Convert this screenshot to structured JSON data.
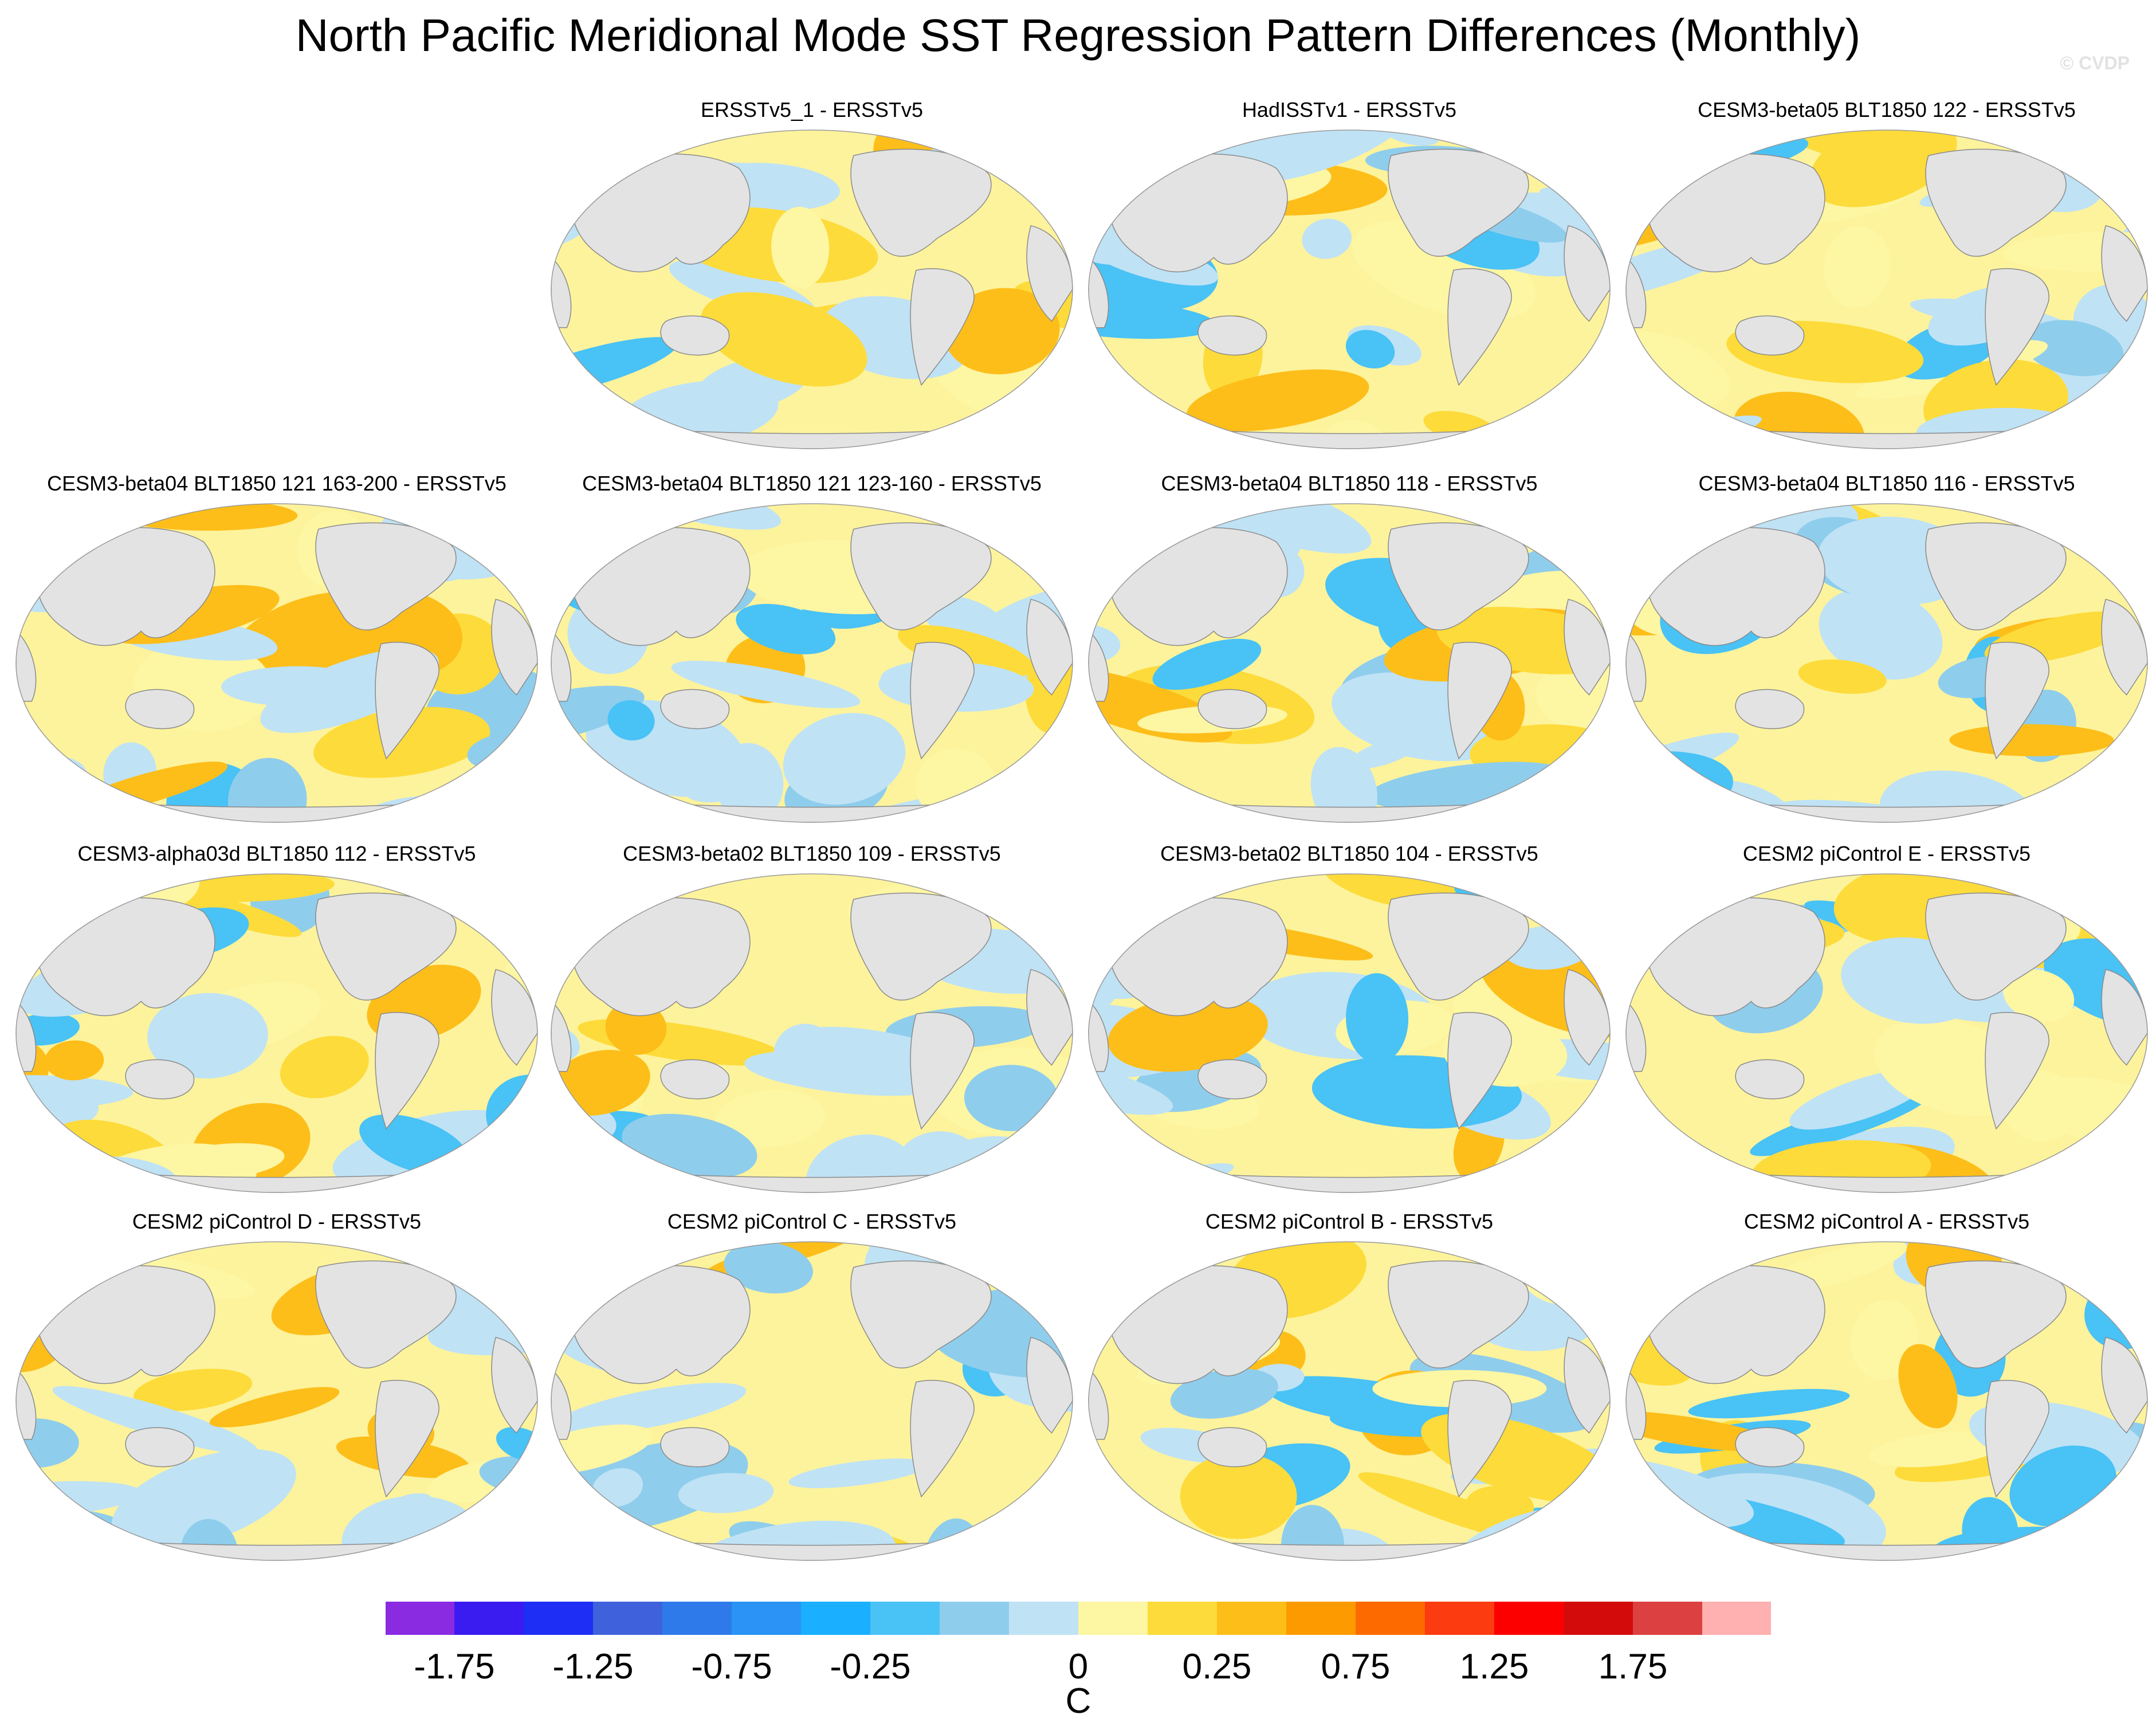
{
  "title": "North Pacific Meridional Mode SST Regression Pattern Differences (Monthly)",
  "watermark": "© CVDP",
  "colors": {
    "land": "#e3e3e3",
    "coast": "#8a8a8a",
    "ocean_base": "#fdf39c"
  },
  "panels": [
    {
      "title": "ERSSTv5_1 - ERSSTv5",
      "col": 1,
      "row": 0
    },
    {
      "title": "HadISSTv1 - ERSSTv5",
      "col": 2,
      "row": 0
    },
    {
      "title": "CESM3-beta05 BLT1850 122 - ERSSTv5",
      "col": 3,
      "row": 0
    },
    {
      "title": "CESM3-beta04 BLT1850 121 163-200 - ERSSTv5",
      "col": 0,
      "row": 1
    },
    {
      "title": "CESM3-beta04 BLT1850 121 123-160 - ERSSTv5",
      "col": 1,
      "row": 1
    },
    {
      "title": "CESM3-beta04 BLT1850 118 - ERSSTv5",
      "col": 2,
      "row": 1
    },
    {
      "title": "CESM3-beta04 BLT1850 116 - ERSSTv5",
      "col": 3,
      "row": 1
    },
    {
      "title": "CESM3-alpha03d BLT1850 112 - ERSSTv5",
      "col": 0,
      "row": 2
    },
    {
      "title": "CESM3-beta02 BLT1850 109 - ERSSTv5",
      "col": 1,
      "row": 2
    },
    {
      "title": "CESM3-beta02 BLT1850 104 - ERSSTv5",
      "col": 2,
      "row": 2
    },
    {
      "title": "CESM2 piControl E - ERSSTv5",
      "col": 3,
      "row": 2
    },
    {
      "title": "CESM2 piControl D - ERSSTv5",
      "col": 0,
      "row": 3
    },
    {
      "title": "CESM2 piControl C - ERSSTv5",
      "col": 1,
      "row": 3
    },
    {
      "title": "CESM2 piControl B - ERSSTv5",
      "col": 2,
      "row": 3
    },
    {
      "title": "CESM2 piControl A - ERSSTv5",
      "col": 3,
      "row": 3
    }
  ],
  "colorbar": {
    "colors": [
      "#8a2be2",
      "#3a1cf0",
      "#1e2ef5",
      "#3f62dc",
      "#2e7aeb",
      "#2a93f5",
      "#1aafff",
      "#49c2f5",
      "#8fcdec",
      "#bfe2f5",
      "#fdf6a3",
      "#fddb3a",
      "#fdbe1a",
      "#fd9a00",
      "#fc6a00",
      "#fc3b10",
      "#fc0000",
      "#d40b0b",
      "#dc4040",
      "#ffb0b0"
    ],
    "labels": [
      "-1.75",
      "-1.25",
      "-0.75",
      "-0.25",
      "0",
      "0.25",
      "0.75",
      "1.25",
      "1.75"
    ],
    "label_boundaries": [
      1,
      3,
      5,
      7,
      10,
      12,
      14,
      16,
      18
    ],
    "units": "C"
  }
}
